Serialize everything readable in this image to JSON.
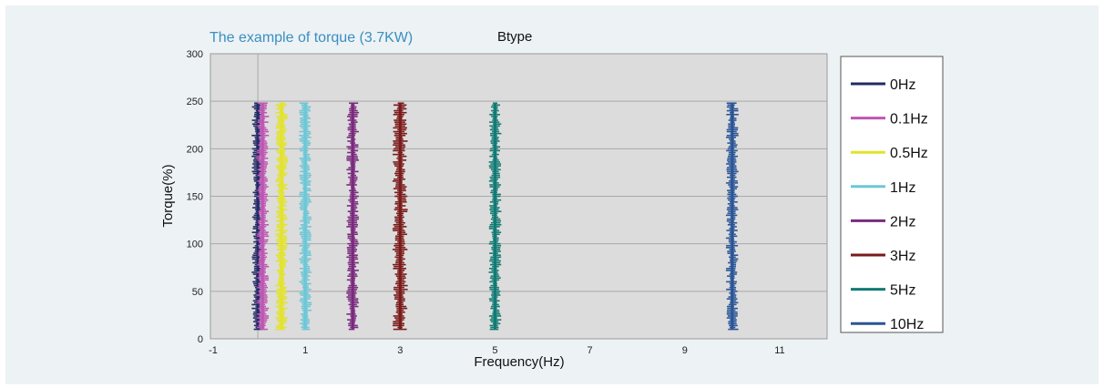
{
  "chart_data": {
    "type": "scatter",
    "title": "The example of torque (3.7KW)",
    "subtitle": "Btype",
    "xlabel": "Frequency(Hz)",
    "ylabel": "Torque(%)",
    "xlim": [
      -1,
      12
    ],
    "ylim": [
      0,
      300
    ],
    "x_ticks": [
      "-1",
      "1",
      "3",
      "5",
      "7",
      "9",
      "11"
    ],
    "y_ticks": [
      "0",
      "50",
      "100",
      "150",
      "200",
      "250",
      "300"
    ],
    "grid": true,
    "legend_position": "right",
    "torque_range": [
      10,
      248
    ],
    "series": [
      {
        "name": "0Hz",
        "x": 0.0,
        "color": "#222a66"
      },
      {
        "name": "0.1Hz",
        "x": 0.1,
        "color": "#bf55b4"
      },
      {
        "name": "0.5Hz",
        "x": 0.5,
        "color": "#e3e32a"
      },
      {
        "name": "1Hz",
        "x": 1.0,
        "color": "#6cc7d6"
      },
      {
        "name": "2Hz",
        "x": 2.0,
        "color": "#7a2a7e"
      },
      {
        "name": "3Hz",
        "x": 3.0,
        "color": "#7a1a1a"
      },
      {
        "name": "5Hz",
        "x": 5.0,
        "color": "#127a74"
      },
      {
        "name": "10Hz",
        "x": 10.0,
        "color": "#2a5596"
      }
    ]
  }
}
